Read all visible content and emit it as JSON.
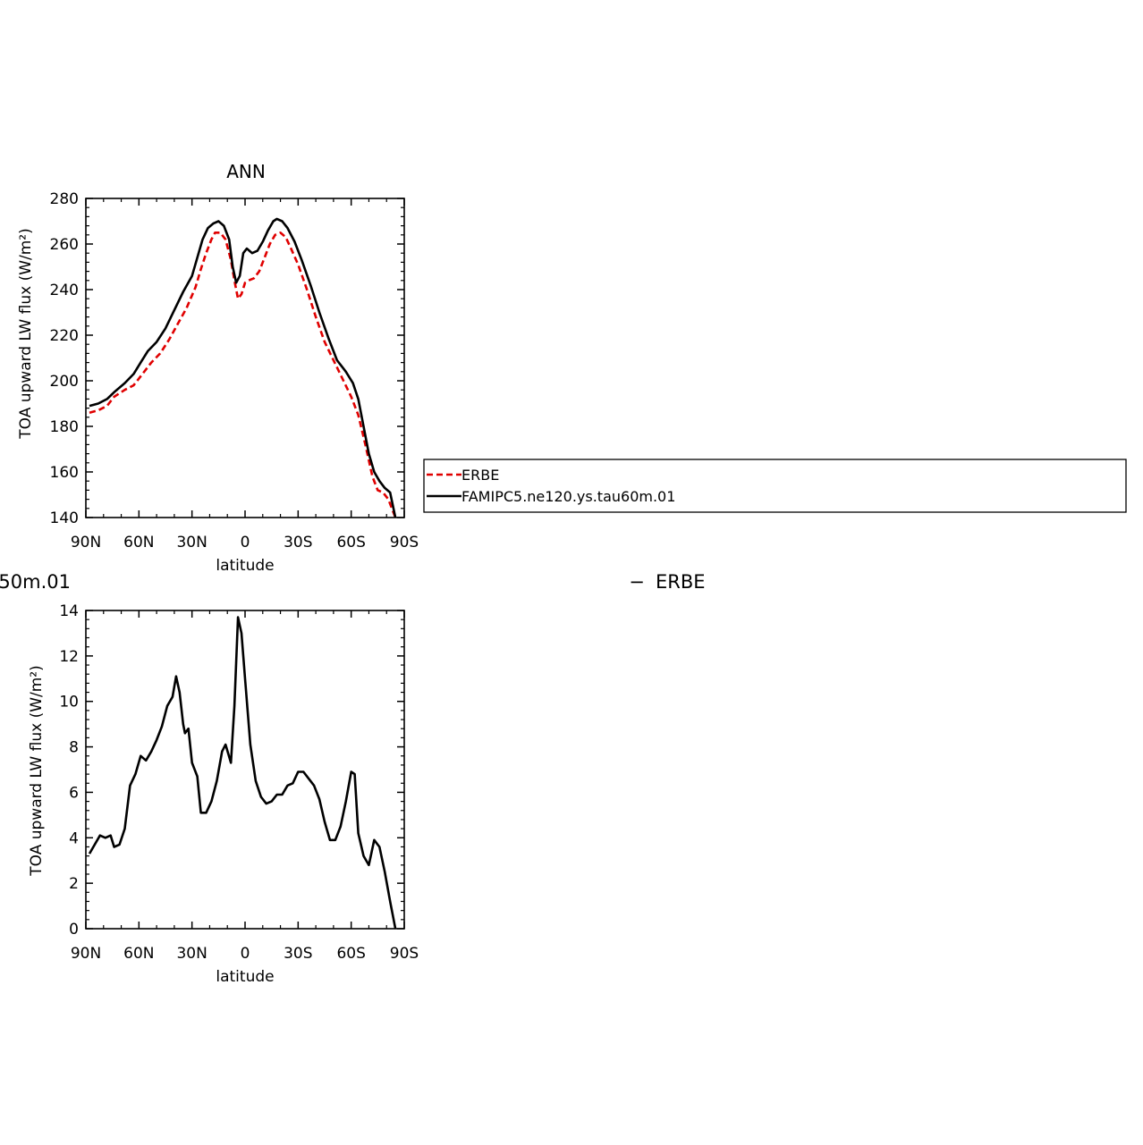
{
  "chart_data": [
    {
      "type": "line",
      "title": "ANN",
      "xlabel": "latitude",
      "ylabel": "TOA upward LW flux (W/m²)",
      "xlim": [
        -90,
        90
      ],
      "ylim": [
        140,
        280
      ],
      "x_ticks": [
        -90,
        -60,
        -30,
        0,
        30,
        60,
        90
      ],
      "x_tick_labels": [
        "90N",
        "60N",
        "30N",
        "0",
        "30S",
        "60S",
        "90S"
      ],
      "y_ticks": [
        140,
        160,
        180,
        200,
        220,
        240,
        260,
        280
      ],
      "y_tick_labels": [
        "140",
        "160",
        "180",
        "200",
        "220",
        "240",
        "260",
        "280"
      ],
      "legend_placement": "right",
      "series": [
        {
          "name": "ERBE",
          "color": "#e00000",
          "dash": "dashed",
          "points": [
            [
              -88,
              186
            ],
            [
              -83,
              187
            ],
            [
              -78,
              189
            ],
            [
              -74,
              193
            ],
            [
              -68,
              196
            ],
            [
              -63,
              198
            ],
            [
              -58,
              203
            ],
            [
              -53,
              208
            ],
            [
              -48,
              212
            ],
            [
              -43,
              218
            ],
            [
              -38,
              225
            ],
            [
              -33,
              232
            ],
            [
              -28,
              241
            ],
            [
              -25,
              249
            ],
            [
              -22,
              256
            ],
            [
              -19,
              262
            ],
            [
              -17,
              265
            ],
            [
              -14,
              265
            ],
            [
              -11,
              262
            ],
            [
              -8,
              253
            ],
            [
              -6,
              244
            ],
            [
              -4,
              236
            ],
            [
              -2,
              238
            ],
            [
              0,
              243
            ],
            [
              2,
              244
            ],
            [
              5,
              245
            ],
            [
              8,
              248
            ],
            [
              11,
              254
            ],
            [
              14,
              260
            ],
            [
              17,
              264
            ],
            [
              20,
              265
            ],
            [
              23,
              263
            ],
            [
              26,
              258
            ],
            [
              30,
              251
            ],
            [
              35,
              240
            ],
            [
              40,
              228
            ],
            [
              45,
              217
            ],
            [
              50,
              209
            ],
            [
              55,
              201
            ],
            [
              60,
              193
            ],
            [
              64,
              185
            ],
            [
              68,
              172
            ],
            [
              72,
              158
            ],
            [
              75,
              152
            ],
            [
              78,
              151
            ],
            [
              81,
              148
            ],
            [
              85,
              140
            ]
          ]
        },
        {
          "name": "FAMIPC5.ne120.ys.tau60m.01",
          "color": "#000000",
          "dash": "solid",
          "points": [
            [
              -88,
              189
            ],
            [
              -83,
              190
            ],
            [
              -78,
              192
            ],
            [
              -74,
              195
            ],
            [
              -68,
              199
            ],
            [
              -63,
              203
            ],
            [
              -59,
              208
            ],
            [
              -55,
              213
            ],
            [
              -50,
              217
            ],
            [
              -45,
              223
            ],
            [
              -40,
              231
            ],
            [
              -35,
              239
            ],
            [
              -30,
              246
            ],
            [
              -27,
              254
            ],
            [
              -24,
              262
            ],
            [
              -21,
              267
            ],
            [
              -18,
              269
            ],
            [
              -15,
              270
            ],
            [
              -12,
              268
            ],
            [
              -9,
              262
            ],
            [
              -7,
              250
            ],
            [
              -5,
              243
            ],
            [
              -3,
              246
            ],
            [
              -1,
              256
            ],
            [
              1,
              258
            ],
            [
              4,
              256
            ],
            [
              7,
              257
            ],
            [
              10,
              261
            ],
            [
              13,
              266
            ],
            [
              16,
              270
            ],
            [
              18,
              271
            ],
            [
              21,
              270
            ],
            [
              24,
              267
            ],
            [
              28,
              261
            ],
            [
              32,
              253
            ],
            [
              37,
              242
            ],
            [
              42,
              230
            ],
            [
              47,
              219
            ],
            [
              52,
              209
            ],
            [
              57,
              204
            ],
            [
              61,
              199
            ],
            [
              64,
              192
            ],
            [
              67,
              180
            ],
            [
              70,
              168
            ],
            [
              73,
              160
            ],
            [
              76,
              156
            ],
            [
              79,
              153
            ],
            [
              82,
              151
            ],
            [
              85,
              140
            ]
          ]
        }
      ]
    },
    {
      "type": "line",
      "title_fragment": "50m.01",
      "title_minus": "−",
      "title_right": "ERBE",
      "xlabel": "latitude",
      "ylabel": "TOA upward LW flux (W/m²)",
      "xlim": [
        -90,
        90
      ],
      "ylim": [
        0,
        14
      ],
      "x_ticks": [
        -90,
        -60,
        -30,
        0,
        30,
        60,
        90
      ],
      "x_tick_labels": [
        "90N",
        "60N",
        "30N",
        "0",
        "30S",
        "60S",
        "90S"
      ],
      "y_ticks": [
        0,
        2,
        4,
        6,
        8,
        10,
        12,
        14
      ],
      "y_tick_labels": [
        "0",
        "2",
        "4",
        "6",
        "8",
        "10",
        "12",
        "14"
      ],
      "series": [
        {
          "color": "#000000",
          "dash": "solid",
          "points": [
            [
              -88,
              3.3
            ],
            [
              -85,
              3.7
            ],
            [
              -82,
              4.1
            ],
            [
              -79,
              4.0
            ],
            [
              -76,
              4.1
            ],
            [
              -74,
              3.6
            ],
            [
              -71,
              3.7
            ],
            [
              -68,
              4.4
            ],
            [
              -65,
              6.3
            ],
            [
              -62,
              6.8
            ],
            [
              -59,
              7.6
            ],
            [
              -56,
              7.4
            ],
            [
              -53,
              7.8
            ],
            [
              -50,
              8.3
            ],
            [
              -47,
              8.9
            ],
            [
              -44,
              9.8
            ],
            [
              -41,
              10.2
            ],
            [
              -39,
              11.1
            ],
            [
              -37,
              10.4
            ],
            [
              -35,
              9.0
            ],
            [
              -34,
              8.6
            ],
            [
              -32,
              8.8
            ],
            [
              -30,
              7.3
            ],
            [
              -27,
              6.7
            ],
            [
              -25,
              5.1
            ],
            [
              -22,
              5.1
            ],
            [
              -19,
              5.6
            ],
            [
              -16,
              6.5
            ],
            [
              -13,
              7.8
            ],
            [
              -11,
              8.1
            ],
            [
              -8,
              7.3
            ],
            [
              -6,
              9.8
            ],
            [
              -4,
              13.7
            ],
            [
              -2,
              13.0
            ],
            [
              0,
              11.0
            ],
            [
              3,
              8.1
            ],
            [
              6,
              6.5
            ],
            [
              9,
              5.8
            ],
            [
              12,
              5.5
            ],
            [
              15,
              5.6
            ],
            [
              18,
              5.9
            ],
            [
              21,
              5.9
            ],
            [
              24,
              6.3
            ],
            [
              27,
              6.4
            ],
            [
              30,
              6.9
            ],
            [
              33,
              6.9
            ],
            [
              36,
              6.6
            ],
            [
              39,
              6.3
            ],
            [
              42,
              5.7
            ],
            [
              45,
              4.7
            ],
            [
              48,
              3.9
            ],
            [
              51,
              3.9
            ],
            [
              54,
              4.5
            ],
            [
              57,
              5.6
            ],
            [
              60,
              6.9
            ],
            [
              62,
              6.8
            ],
            [
              64,
              4.2
            ],
            [
              67,
              3.2
            ],
            [
              70,
              2.8
            ],
            [
              73,
              3.9
            ],
            [
              76,
              3.6
            ],
            [
              79,
              2.5
            ],
            [
              82,
              1.2
            ],
            [
              85,
              0.0
            ]
          ]
        }
      ]
    }
  ]
}
